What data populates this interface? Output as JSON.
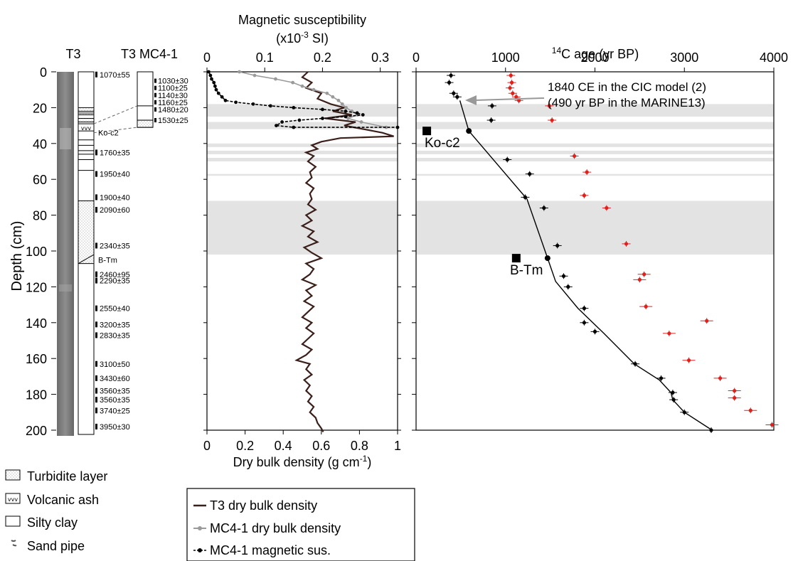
{
  "strat": {
    "t3_label": "T3",
    "mc_label": "T3 MC4-1",
    "depth_label": "Depth (cm)",
    "depth_ticks": [
      0,
      20,
      40,
      60,
      80,
      100,
      120,
      140,
      160,
      180,
      200
    ],
    "t3_ages": [
      {
        "depth": 1.5,
        "text": "1070±55"
      },
      {
        "depth": 45,
        "text": "1760±35"
      },
      {
        "depth": 57,
        "text": "1950±40"
      },
      {
        "depth": 70,
        "text": "1900±40"
      },
      {
        "depth": 77,
        "text": "2090±60"
      },
      {
        "depth": 97,
        "text": "2340±35"
      },
      {
        "depth": 113,
        "text": "2460±95"
      },
      {
        "depth": 116.5,
        "text": "2290±35"
      },
      {
        "depth": 132,
        "text": "2550±40"
      },
      {
        "depth": 141,
        "text": "3200±35"
      },
      {
        "depth": 147,
        "text": "2830±35"
      },
      {
        "depth": 163,
        "text": "3100±50"
      },
      {
        "depth": 171,
        "text": "3430±60"
      },
      {
        "depth": 178,
        "text": "3560±35"
      },
      {
        "depth": 183,
        "text": "3560±35"
      },
      {
        "depth": 189,
        "text": "3740±25"
      },
      {
        "depth": 198,
        "text": "3950±30"
      }
    ],
    "mc_ages": [
      {
        "depth": 5,
        "text": "1030±30"
      },
      {
        "depth": 9,
        "text": "1100±25"
      },
      {
        "depth": 13,
        "text": "1140±30"
      },
      {
        "depth": 17,
        "text": "1160±25"
      },
      {
        "depth": 21,
        "text": "1480±20"
      },
      {
        "depth": 27,
        "text": "1530±25"
      }
    ],
    "layer_labels": [
      {
        "depth": 34,
        "text": "Ko-c2"
      },
      {
        "depth": 105,
        "text": "B-Tm"
      }
    ]
  },
  "legend_left": {
    "items": [
      "Turbidite layer",
      "Volcanic ash",
      "Silty clay",
      "Sand pipe"
    ]
  },
  "legend_mid": {
    "items": [
      "T3 dry bulk density",
      "MC4-1 dry bulk density",
      "MC4-1 magnetic sus."
    ]
  },
  "chart_data": [
    {
      "type": "line",
      "title": "Magnetic susceptibility",
      "title_units": "(x10-3 SI)",
      "xlabel": "Dry bulk density (g cm-1)",
      "ylabel": "Depth (cm)",
      "x_bottom_ticks": [
        "0",
        "0.2",
        "0.4",
        "0.6",
        "0.8",
        "1"
      ],
      "x_top_ticks": [
        "0",
        "0.1",
        "0.2",
        "0.3"
      ],
      "x_bottom_range": [
        0,
        1
      ],
      "x_top_range": [
        0,
        0.33
      ],
      "ylim": [
        0,
        200
      ],
      "shaded_depths": [
        [
          18,
          25
        ],
        [
          28,
          32
        ],
        [
          40,
          42
        ],
        [
          44,
          46
        ],
        [
          48,
          50
        ],
        [
          57,
          58
        ],
        [
          72,
          102
        ]
      ],
      "series": [
        {
          "name": "T3 dry bulk density",
          "color": "#3a1f1a",
          "axis": "bottom",
          "points": [
            [
              0.53,
              0
            ],
            [
              0.5,
              3
            ],
            [
              0.55,
              6
            ],
            [
              0.52,
              9
            ],
            [
              0.6,
              12
            ],
            [
              0.58,
              15
            ],
            [
              0.65,
              18
            ],
            [
              0.72,
              20
            ],
            [
              0.66,
              22
            ],
            [
              0.76,
              24
            ],
            [
              0.62,
              26
            ],
            [
              0.78,
              28
            ],
            [
              0.72,
              30
            ],
            [
              0.82,
              32
            ],
            [
              0.92,
              34
            ],
            [
              0.98,
              36
            ],
            [
              0.7,
              37
            ],
            [
              0.6,
              39
            ],
            [
              0.55,
              41
            ],
            [
              0.58,
              43
            ],
            [
              0.52,
              45
            ],
            [
              0.56,
              47
            ],
            [
              0.53,
              50
            ],
            [
              0.57,
              53
            ],
            [
              0.54,
              56
            ],
            [
              0.55,
              59
            ],
            [
              0.52,
              62
            ],
            [
              0.56,
              65
            ],
            [
              0.54,
              68
            ],
            [
              0.55,
              71
            ],
            [
              0.53,
              74
            ],
            [
              0.57,
              77
            ],
            [
              0.52,
              80
            ],
            [
              0.55,
              83
            ],
            [
              0.5,
              86
            ],
            [
              0.56,
              89
            ],
            [
              0.53,
              92
            ],
            [
              0.58,
              95
            ],
            [
              0.51,
              98
            ],
            [
              0.55,
              101
            ],
            [
              0.6,
              104
            ],
            [
              0.52,
              107
            ],
            [
              0.56,
              110
            ],
            [
              0.54,
              113
            ],
            [
              0.5,
              116
            ],
            [
              0.57,
              119
            ],
            [
              0.52,
              122
            ],
            [
              0.55,
              125
            ],
            [
              0.51,
              128
            ],
            [
              0.56,
              131
            ],
            [
              0.53,
              134
            ],
            [
              0.5,
              137
            ],
            [
              0.55,
              140
            ],
            [
              0.52,
              143
            ],
            [
              0.56,
              146
            ],
            [
              0.53,
              149
            ],
            [
              0.5,
              152
            ],
            [
              0.55,
              155
            ],
            [
              0.52,
              158
            ],
            [
              0.47,
              161
            ],
            [
              0.54,
              163
            ],
            [
              0.52,
              166
            ],
            [
              0.55,
              169
            ],
            [
              0.51,
              172
            ],
            [
              0.54,
              175
            ],
            [
              0.52,
              178
            ],
            [
              0.55,
              181
            ],
            [
              0.53,
              184
            ],
            [
              0.56,
              187
            ],
            [
              0.54,
              190
            ],
            [
              0.57,
              193
            ],
            [
              0.58,
              196
            ],
            [
              0.6,
              199
            ],
            [
              0.61,
              201
            ]
          ]
        },
        {
          "name": "MC4-1 dry bulk density",
          "color": "#9a9a9a",
          "axis": "bottom",
          "points": [
            [
              0.17,
              0
            ],
            [
              0.25,
              2
            ],
            [
              0.36,
              4
            ],
            [
              0.45,
              6
            ],
            [
              0.5,
              8
            ],
            [
              0.56,
              10
            ],
            [
              0.63,
              12
            ],
            [
              0.66,
              14
            ],
            [
              0.69,
              16
            ],
            [
              0.71,
              18
            ],
            [
              0.73,
              20
            ],
            [
              0.76,
              22
            ],
            [
              0.79,
              24
            ],
            [
              0.74,
              26
            ],
            [
              0.81,
              28
            ],
            [
              0.94,
              31
            ]
          ]
        },
        {
          "name": "MC4-1 magnetic sus.",
          "color": "#000000",
          "axis": "top",
          "points": [
            [
              0.003,
              0
            ],
            [
              0.006,
              2
            ],
            [
              0.008,
              4
            ],
            [
              0.012,
              6
            ],
            [
              0.014,
              8
            ],
            [
              0.016,
              10
            ],
            [
              0.02,
              12
            ],
            [
              0.026,
              14
            ],
            [
              0.032,
              16
            ],
            [
              0.05,
              17
            ],
            [
              0.08,
              18
            ],
            [
              0.11,
              19
            ],
            [
              0.15,
              20
            ],
            [
              0.2,
              21
            ],
            [
              0.24,
              22
            ],
            [
              0.26,
              23
            ],
            [
              0.27,
              24
            ],
            [
              0.24,
              25
            ],
            [
              0.2,
              26
            ],
            [
              0.16,
              27
            ],
            [
              0.13,
              28
            ],
            [
              0.12,
              30
            ],
            [
              0.15,
              31
            ],
            [
              0.33,
              31
            ]
          ]
        }
      ]
    },
    {
      "type": "scatter",
      "title": "14C age (yr BP)",
      "ylabel": "Depth (cm)",
      "x_ticks": [
        "0",
        "1000",
        "2000",
        "3000",
        "4000"
      ],
      "xlim": [
        0,
        4000
      ],
      "ylim": [
        0,
        200
      ],
      "annotations": [
        "1840 CE in the CIC model (2)",
        "(490 yr BP in the MARINE13)",
        "Ko-c2",
        "B-Tm"
      ],
      "tephra_markers": [
        {
          "label": "Ko-c2",
          "age": 120,
          "depth": 33
        },
        {
          "label": "B-Tm",
          "age": 1120,
          "depth": 104
        }
      ],
      "series": [
        {
          "name": "Age model",
          "color": "#000000",
          "marker": "line",
          "points": [
            [
              490,
              16
            ],
            [
              590,
              33
            ],
            [
              1240,
              71
            ],
            [
              1470,
              104
            ],
            [
              1560,
              117
            ],
            [
              1810,
              132
            ],
            [
              2100,
              146
            ],
            [
              2440,
              163
            ],
            [
              2720,
              172
            ],
            [
              2850,
              179
            ],
            [
              2870,
              183
            ],
            [
              3000,
              190
            ],
            [
              3310,
              200
            ]
          ]
        },
        {
          "name": "Black ages",
          "color": "#000000",
          "points": [
            [
              390,
              2
            ],
            [
              370,
              6
            ],
            [
              420,
              12
            ],
            [
              460,
              14
            ],
            [
              850,
              19
            ],
            [
              840,
              27
            ],
            [
              1020,
              49
            ],
            [
              1270,
              57
            ],
            [
              1220,
              70
            ],
            [
              1430,
              76
            ],
            [
              1580,
              97
            ],
            [
              1650,
              114
            ],
            [
              1700,
              120
            ],
            [
              1880,
              132
            ],
            [
              1880,
              140
            ],
            [
              2000,
              145
            ],
            [
              2450,
              163
            ],
            [
              2740,
              171
            ],
            [
              2870,
              179
            ],
            [
              2880,
              183
            ],
            [
              3000,
              190
            ],
            [
              3300,
              200
            ]
          ]
        },
        {
          "name": "Red ages",
          "color": "#e0201b",
          "points": [
            [
              1060,
              2
            ],
            [
              1070,
              6
            ],
            [
              1050,
              9
            ],
            [
              1080,
              12
            ],
            [
              1120,
              14
            ],
            [
              1150,
              16
            ],
            [
              1490,
              19
            ],
            [
              1520,
              27
            ],
            [
              1770,
              47
            ],
            [
              1910,
              56
            ],
            [
              1880,
              69
            ],
            [
              2130,
              76
            ],
            [
              2350,
              96
            ],
            [
              2550,
              113
            ],
            [
              2500,
              116
            ],
            [
              2570,
              131
            ],
            [
              3250,
              139
            ],
            [
              2830,
              146
            ],
            [
              3050,
              161
            ],
            [
              3400,
              171
            ],
            [
              3560,
              178
            ],
            [
              3560,
              182
            ],
            [
              3740,
              189
            ],
            [
              3980,
              197
            ]
          ]
        }
      ]
    }
  ]
}
